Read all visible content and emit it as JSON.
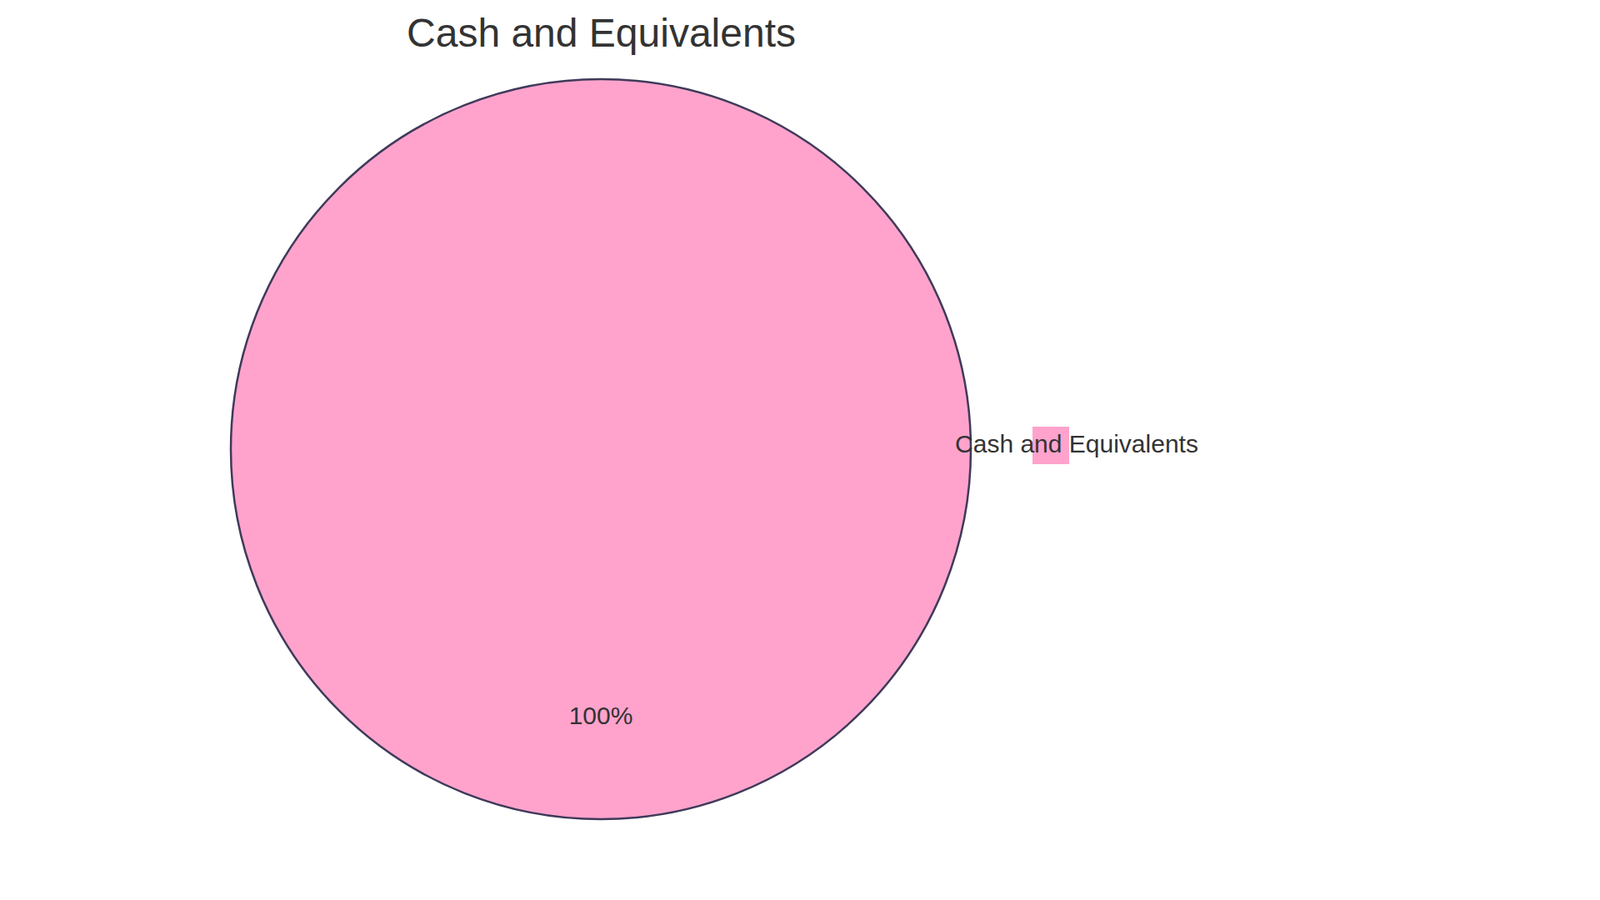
{
  "chart_data": {
    "type": "pie",
    "title": "Cash and Equivalents",
    "categories": [
      "Cash and Equivalents"
    ],
    "values": [
      100
    ],
    "value_labels": [
      "100%"
    ],
    "colors": [
      "#ffa3cc"
    ],
    "data_labels": true,
    "legend": "right"
  }
}
